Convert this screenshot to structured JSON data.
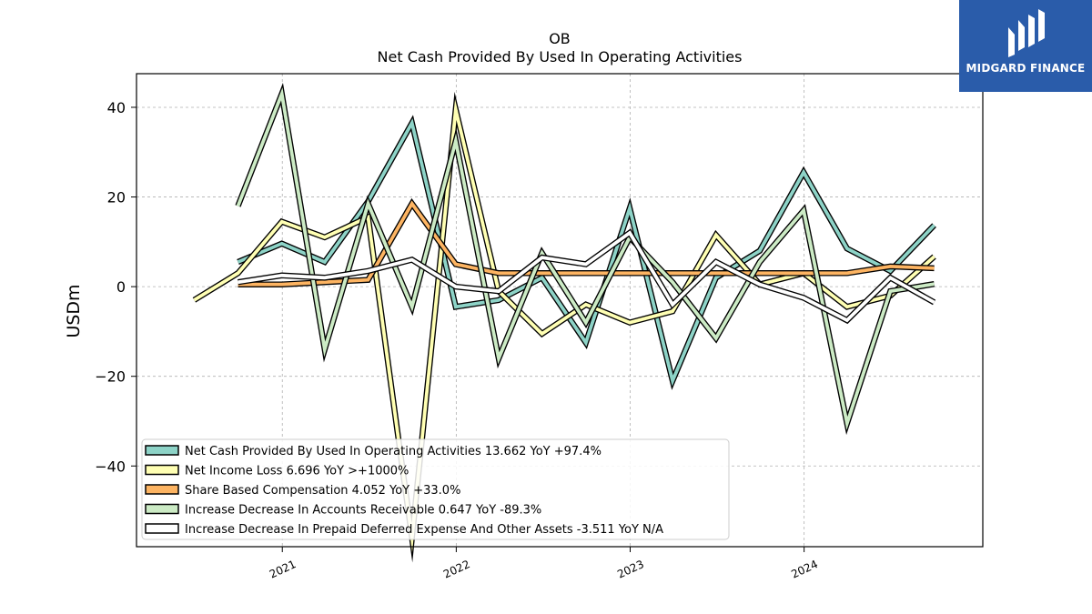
{
  "logo": {
    "text": "MIDGARD FINANCE"
  },
  "chart_data": {
    "type": "line",
    "title": "OB",
    "subtitle": "Net Cash Provided By Used In Operating Activities",
    "xlabel": "",
    "ylabel": "USDm",
    "ylim": [
      -58,
      47.5
    ],
    "x_ticks": [
      "2021",
      "2022",
      "2023",
      "2024"
    ],
    "y_ticks": [
      -40,
      -20,
      0,
      20,
      40
    ],
    "grid": true,
    "legend_position": "lower-left",
    "x": [
      "2020-06-30",
      "2020-09-30",
      "2020-12-31",
      "2021-03-31",
      "2021-06-30",
      "2021-09-30",
      "2021-12-31",
      "2022-03-31",
      "2022-06-30",
      "2022-09-30",
      "2022-12-31",
      "2023-03-31",
      "2023-06-30",
      "2023-09-30",
      "2023-12-31",
      "2024-03-31",
      "2024-06-30",
      "2024-09-30"
    ],
    "series": [
      {
        "name": "Net Cash Provided By Used In Operating Activities  13.662 YoY +97.4%",
        "color": "#8dd3c7",
        "values": [
          null,
          5.5,
          9.6,
          5.5,
          19.0,
          36.5,
          -4.5,
          -3.0,
          2.0,
          -12.5,
          17.5,
          -21.0,
          2.0,
          8.0,
          25.5,
          8.5,
          3.5,
          13.7
        ]
      },
      {
        "name": "Net Income Loss  6.696 YoY >+1000%",
        "color": "#ffffb3",
        "values": [
          -3.0,
          3.0,
          14.5,
          11.0,
          15.5,
          -56.0,
          39.5,
          -1.0,
          -10.5,
          -4.0,
          -8.0,
          -5.5,
          11.5,
          0.5,
          3.0,
          -4.5,
          -2.0,
          6.7
        ]
      },
      {
        "name": "Share Based Compensation  4.052 YoY +33.0%",
        "color": "#fdb462",
        "values": [
          null,
          0.5,
          0.5,
          1.0,
          1.5,
          18.5,
          5.0,
          3.0,
          3.0,
          3.0,
          3.0,
          3.0,
          3.0,
          3.0,
          3.0,
          3.0,
          4.5,
          4.1
        ]
      },
      {
        "name": "Increase Decrease In Accounts Receivable  0.647 YoY -89.3%",
        "color": "#ccebc5",
        "values": [
          null,
          18.0,
          43.0,
          -14.0,
          18.5,
          -4.5,
          32.5,
          -16.0,
          7.5,
          -8.0,
          11.0,
          1.0,
          -11.5,
          5.5,
          17.0,
          -30.5,
          -1.0,
          0.6
        ]
      },
      {
        "name": "Increase Decrease In Prepaid Deferred Expense And Other Assets  -3.511 YoY N/A",
        "color": "#ffffff",
        "values": [
          null,
          1.0,
          2.5,
          2.0,
          3.5,
          6.0,
          0.0,
          -1.0,
          6.5,
          5.0,
          12.0,
          -4.0,
          5.5,
          0.5,
          -2.5,
          -7.5,
          2.0,
          -3.5
        ]
      }
    ]
  }
}
